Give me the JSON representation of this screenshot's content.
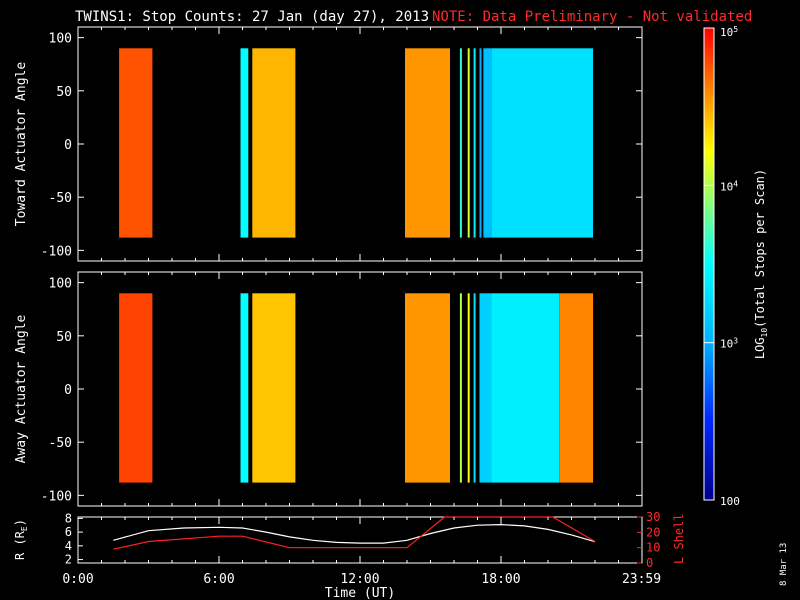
{
  "title": {
    "main": "TWINS1: Stop Counts: 27 Jan (day  27), 2013",
    "note": "NOTE: Data Preliminary - Not validated"
  },
  "footer_date": "8 Mar 13",
  "colors": {
    "note": "#ff2a2a",
    "axis": "#ffffff",
    "background": "#000000",
    "r_line": "#ffffff",
    "lshell_line": "#ff2020"
  },
  "chart_data": [
    {
      "type": "heatmap",
      "ylabel": "Toward Actuator Angle",
      "ylim": [
        -110,
        110
      ],
      "yticks": [
        "100",
        "50",
        "0",
        "-50",
        "-100"
      ],
      "ytick_values": [
        100,
        50,
        0,
        -50,
        -100
      ],
      "angle_range": [
        -88,
        90
      ],
      "data_blocks": [
        {
          "start": "01:45",
          "end": "03:10",
          "level": 4.75
        },
        {
          "start": "06:55",
          "end": "07:15",
          "level": 3.5
        },
        {
          "start": "07:25",
          "end": "09:15",
          "level": 4.45
        },
        {
          "start": "13:55",
          "end": "15:50",
          "level": 4.55
        },
        {
          "start": "16:15",
          "end": "16:20",
          "level": 3.6
        },
        {
          "start": "16:35",
          "end": "16:40",
          "level": 4.1
        },
        {
          "start": "16:50",
          "end": "16:55",
          "level": 3.4
        },
        {
          "start": "17:05",
          "end": "17:10",
          "level": 3.0
        },
        {
          "start": "17:15",
          "end": "17:35",
          "level": 3.1
        },
        {
          "start": "17:35",
          "end": "21:55",
          "level": 3.3
        }
      ]
    },
    {
      "type": "heatmap",
      "ylabel": "Away Actuator Angle",
      "ylim": [
        -110,
        110
      ],
      "yticks": [
        "100",
        "50",
        "0",
        "-50",
        "-100"
      ],
      "ytick_values": [
        100,
        50,
        0,
        -50,
        -100
      ],
      "angle_range": [
        -88,
        90
      ],
      "data_blocks": [
        {
          "start": "01:45",
          "end": "03:10",
          "level": 4.8
        },
        {
          "start": "06:55",
          "end": "07:15",
          "level": 3.5
        },
        {
          "start": "07:25",
          "end": "09:15",
          "level": 4.4
        },
        {
          "start": "13:55",
          "end": "15:50",
          "level": 4.55
        },
        {
          "start": "16:15",
          "end": "16:20",
          "level": 4.0
        },
        {
          "start": "16:35",
          "end": "16:40",
          "level": 4.2
        },
        {
          "start": "16:50",
          "end": "16:55",
          "level": 3.3
        },
        {
          "start": "17:05",
          "end": "17:35",
          "level": 3.2
        },
        {
          "start": "17:35",
          "end": "20:30",
          "level": 3.4
        },
        {
          "start": "20:30",
          "end": "21:55",
          "level": 4.6
        }
      ]
    },
    {
      "type": "line",
      "xlabel": "Time (UT)",
      "xticks": [
        "0:00",
        "6:00",
        "12:00",
        "18:00",
        "23:59"
      ],
      "xtick_values": [
        0,
        6,
        12,
        18,
        23.98
      ],
      "xlim": [
        0,
        24
      ],
      "ylabel_left": "R (R",
      "ylabel_left_sub": "E",
      "ylabel_left_close": ")",
      "ylim_left": [
        1.5,
        8.2
      ],
      "yticks_left": [
        "8",
        "6",
        "4",
        "2"
      ],
      "ytick_values_left": [
        8,
        6,
        4,
        2
      ],
      "ylabel_right": "L Shell",
      "ylim_right": [
        0,
        30
      ],
      "yticks_right": [
        "30",
        "20",
        "10",
        "0"
      ],
      "ytick_values_right": [
        30,
        20,
        10,
        0
      ],
      "series": [
        {
          "axis": "left",
          "x": [
            1.5,
            3,
            4.5,
            6,
            7,
            8,
            9,
            10,
            11,
            12,
            13,
            14,
            15,
            16,
            17,
            18,
            19,
            20,
            21,
            22
          ],
          "y": [
            4.8,
            6.2,
            6.6,
            6.7,
            6.6,
            6.0,
            5.3,
            4.8,
            4.5,
            4.4,
            4.4,
            4.8,
            5.8,
            6.6,
            7.0,
            7.1,
            6.9,
            6.4,
            5.6,
            4.6
          ]
        },
        {
          "axis": "right",
          "x": [
            1.5,
            3,
            6,
            7,
            9,
            12,
            14,
            15.6,
            20.2,
            22
          ],
          "y": [
            9,
            14,
            17.5,
            17.5,
            10,
            10,
            10,
            30,
            30,
            14
          ]
        }
      ]
    },
    {
      "type": "heatmap",
      "role": "colorbar",
      "title": "LOG",
      "title_sub": "10",
      "title_rest": "(Total Stops per Scan)",
      "scale": "log",
      "range": [
        100,
        100000
      ],
      "ticks": [
        {
          "value": 2,
          "base": "",
          "exp": "",
          "label": "100"
        },
        {
          "value": 3,
          "base": "10",
          "exp": "3",
          "label": ""
        },
        {
          "value": 4,
          "base": "10",
          "exp": "4",
          "label": ""
        },
        {
          "value": 5,
          "base": "10",
          "exp": "5",
          "label": ""
        }
      ]
    }
  ]
}
